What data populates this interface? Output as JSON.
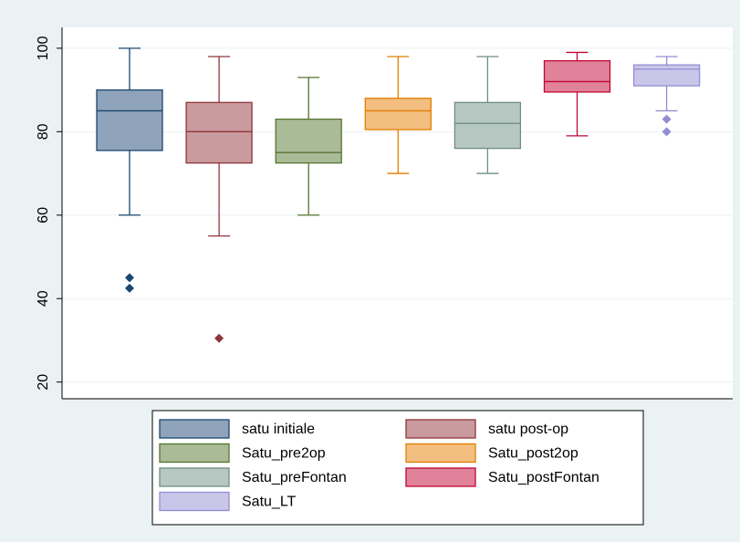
{
  "chart_data": {
    "type": "box",
    "ylim": [
      16,
      105
    ],
    "yticks": [
      20,
      40,
      60,
      80,
      100
    ],
    "grid": true,
    "legend": "bottom",
    "series": [
      {
        "name": "satu initiale",
        "color": "#1a476f",
        "fill": "#8fa3ba",
        "min": 60,
        "q1": 75.5,
        "median": 85,
        "q3": 90,
        "max": 100,
        "outliers": [
          45,
          42.5
        ]
      },
      {
        "name": "satu post-op",
        "color": "#90353b",
        "fill": "#c99a9e",
        "min": 55,
        "q1": 72.5,
        "median": 80,
        "q3": 87,
        "max": 98,
        "outliers": [
          30.5
        ]
      },
      {
        "name": "Satu_pre2op",
        "color": "#55752f",
        "fill": "#aabb98",
        "min": 60,
        "q1": 72.5,
        "median": 75,
        "q3": 83,
        "max": 93,
        "outliers": []
      },
      {
        "name": "Satu_post2op",
        "color": "#e37e00",
        "fill": "#f2bf80",
        "min": 70,
        "q1": 80.5,
        "median": 85,
        "q3": 88,
        "max": 98,
        "outliers": []
      },
      {
        "name": "Satu_preFontan",
        "color": "#6e8e84",
        "fill": "#b7c7c2",
        "min": 70,
        "q1": 76,
        "median": 82,
        "q3": 87,
        "max": 98,
        "outliers": []
      },
      {
        "name": "Satu_postFontan",
        "color": "#c10534",
        "fill": "#e08299",
        "min": 79,
        "q1": 89.5,
        "median": 92,
        "q3": 97,
        "max": 99,
        "outliers": []
      },
      {
        "name": "Satu_LT",
        "color": "#938dd2",
        "fill": "#c9c6e9",
        "min": 85,
        "q1": 91,
        "median": 95,
        "q3": 96,
        "max": 98,
        "outliers": [
          83,
          80
        ]
      }
    ]
  }
}
